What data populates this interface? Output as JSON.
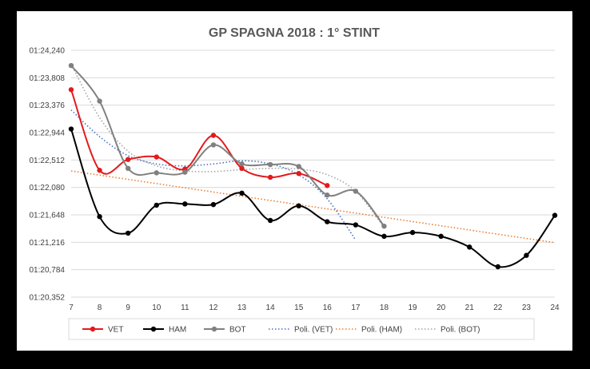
{
  "chart_data": {
    "type": "line",
    "title": "GP SPAGNA 2018 : 1° STINT",
    "xlabel": "",
    "ylabel": "",
    "x": [
      7,
      8,
      9,
      10,
      11,
      12,
      13,
      14,
      15,
      16,
      17,
      18,
      19,
      20,
      21,
      22,
      23,
      24
    ],
    "x_ticks": [
      "7",
      "8",
      "9",
      "10",
      "11",
      "12",
      "13",
      "14",
      "15",
      "16",
      "17",
      "18",
      "19",
      "20",
      "21",
      "22",
      "23",
      "24"
    ],
    "y_ticks": [
      "01:24,240",
      "01:23,808",
      "01:23,376",
      "01:22,944",
      "01:22,512",
      "01:22,080",
      "01:21,648",
      "01:21,216",
      "01:20,784",
      "01:20,352"
    ],
    "ylim": [
      80.352,
      84.24
    ],
    "y_unit": "seconds within 01:xx,xxx lap time",
    "grid": true,
    "legend_position": "bottom",
    "series": [
      {
        "name": "VET",
        "color": "#e31a1c",
        "x": [
          7,
          8,
          9,
          10,
          11,
          12,
          13,
          14,
          15,
          16
        ],
        "values": [
          83.62,
          82.35,
          82.52,
          82.56,
          82.37,
          82.9,
          82.38,
          82.24,
          82.3,
          82.11
        ]
      },
      {
        "name": "HAM",
        "color": "#000000",
        "x": [
          7,
          8,
          9,
          10,
          11,
          12,
          13,
          14,
          15,
          16,
          17,
          18,
          19,
          20,
          21,
          22,
          23,
          24
        ],
        "values": [
          83.0,
          81.62,
          81.36,
          81.8,
          81.82,
          81.81,
          81.99,
          81.56,
          81.79,
          81.54,
          81.49,
          81.31,
          81.37,
          81.31,
          81.14,
          80.83,
          81.01,
          81.64
        ]
      },
      {
        "name": "BOT",
        "color": "#808080",
        "x": [
          7,
          8,
          9,
          10,
          11,
          12,
          13,
          14,
          15,
          16,
          17,
          18
        ],
        "values": [
          84.0,
          83.44,
          82.38,
          82.31,
          82.32,
          82.75,
          82.45,
          82.44,
          82.41,
          81.96,
          82.02,
          81.47
        ]
      }
    ],
    "trendlines": [
      {
        "name": "Poli. (VET)",
        "color": "#4472c4",
        "x": [
          7,
          8,
          9,
          10,
          11,
          12,
          13,
          14,
          15,
          16,
          17
        ],
        "values": [
          83.3,
          82.88,
          82.58,
          82.45,
          82.42,
          82.45,
          82.5,
          82.45,
          82.28,
          81.9,
          81.25
        ]
      },
      {
        "name": "Poli. (HAM)",
        "color": "#ed7d31",
        "x": [
          7,
          24
        ],
        "values": [
          82.34,
          81.21
        ]
      },
      {
        "name": "Poli. (BOT)",
        "color": "#a5a5a5",
        "x": [
          7,
          8,
          9,
          10,
          11,
          12,
          13,
          14,
          15,
          16,
          17,
          18
        ],
        "values": [
          84.02,
          83.18,
          82.65,
          82.42,
          82.34,
          82.33,
          82.36,
          82.38,
          82.37,
          82.28,
          82.02,
          81.45
        ]
      }
    ]
  }
}
